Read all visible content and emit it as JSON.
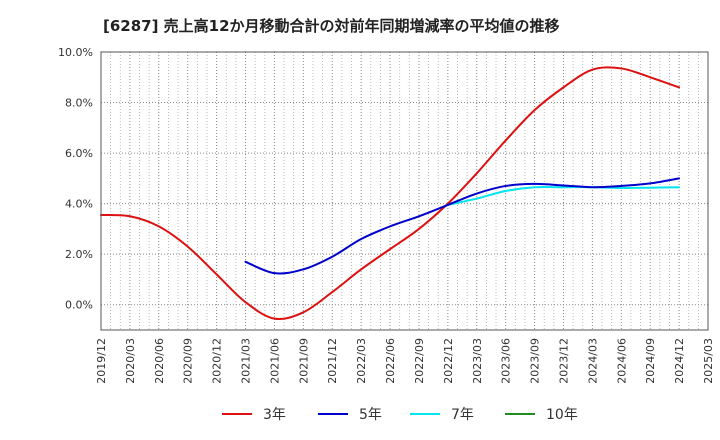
{
  "chart_data": {
    "type": "line",
    "title": "[6287]  売上高12か月移動合計の対前年同期増減率の平均値の推移",
    "xlabel": "",
    "ylabel": "",
    "ylim": [
      -1.0,
      10.0
    ],
    "yticks": [
      0.0,
      2.0,
      4.0,
      6.0,
      8.0,
      10.0
    ],
    "ytick_labels": [
      "0.0%",
      "2.0%",
      "4.0%",
      "6.0%",
      "8.0%",
      "10.0%"
    ],
    "x_labels": [
      "2019/12",
      "2020/03",
      "2020/06",
      "2020/09",
      "2020/12",
      "2021/03",
      "2021/06",
      "2021/09",
      "2021/12",
      "2022/03",
      "2022/06",
      "2022/09",
      "2022/12",
      "2023/03",
      "2023/06",
      "2023/09",
      "2023/12",
      "2024/03",
      "2024/06",
      "2024/09",
      "2024/12",
      "2025/03"
    ],
    "grid": true,
    "legend_position": "bottom",
    "series": [
      {
        "name": "3年",
        "color": "#dd1111",
        "values": [
          3.55,
          3.5,
          3.1,
          2.3,
          1.2,
          0.1,
          -0.55,
          -0.3,
          0.5,
          1.4,
          2.2,
          3.0,
          4.0,
          5.2,
          6.5,
          7.7,
          8.6,
          9.3,
          9.35,
          9.0,
          8.6
        ]
      },
      {
        "name": "5年",
        "color": "#0000cc",
        "values": [
          null,
          null,
          null,
          null,
          null,
          1.7,
          1.25,
          1.4,
          1.9,
          2.6,
          3.1,
          3.5,
          3.95,
          4.4,
          4.7,
          4.78,
          4.72,
          4.65,
          4.7,
          4.8,
          5.0
        ]
      },
      {
        "name": "7年",
        "color": "#00e5ee",
        "values": [
          null,
          null,
          null,
          null,
          null,
          null,
          null,
          null,
          null,
          null,
          null,
          null,
          3.95,
          4.2,
          4.5,
          4.65,
          4.65,
          4.65,
          4.62,
          4.63,
          4.65
        ]
      },
      {
        "name": "10年",
        "color": "#228b22",
        "values": []
      }
    ]
  }
}
